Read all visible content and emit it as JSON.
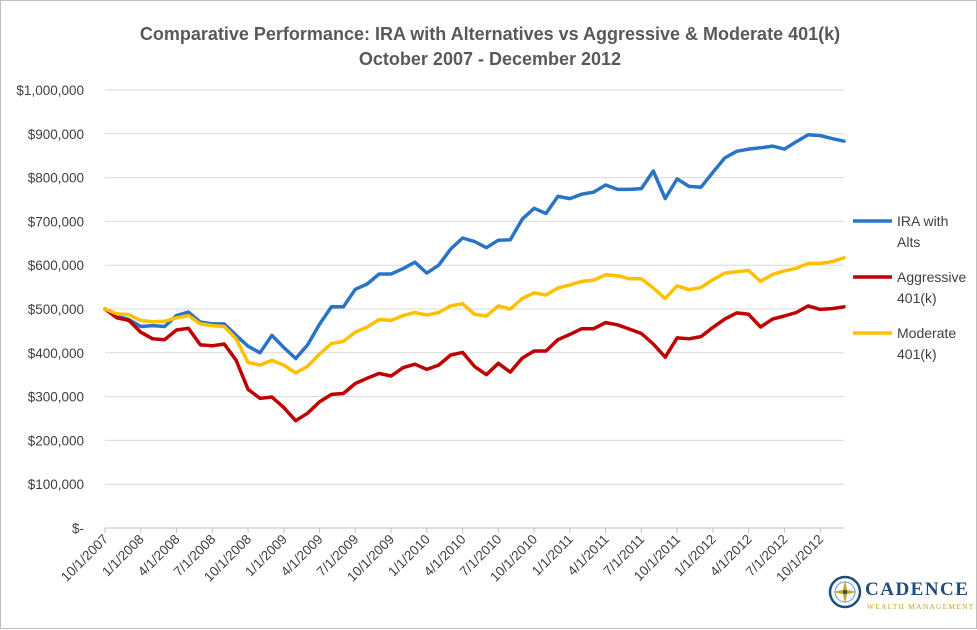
{
  "chart_data": {
    "type": "line",
    "title": "Comparative Performance: IRA with Alternatives vs Aggressive & Moderate 401(k)",
    "subtitle": "October 2007 - December 2012",
    "xlabel": "",
    "ylabel": "",
    "ylim": [
      0,
      1000000
    ],
    "y_ticks": [
      0,
      100000,
      200000,
      300000,
      400000,
      500000,
      600000,
      700000,
      800000,
      900000,
      1000000
    ],
    "y_tick_labels": [
      "$-",
      "$100,000",
      "$200,000",
      "$300,000",
      "$400,000",
      "$500,000",
      "$600,000",
      "$700,000",
      "$800,000",
      "$900,000",
      "$1,000,000"
    ],
    "x_tick_labels": [
      "10/1/2007",
      "1/1/2008",
      "4/1/2008",
      "7/1/2008",
      "10/1/2008",
      "1/1/2009",
      "4/1/2009",
      "7/1/2009",
      "10/1/2009",
      "1/1/2010",
      "4/1/2010",
      "7/1/2010",
      "10/1/2010",
      "1/1/2011",
      "4/1/2011",
      "7/1/2011",
      "10/1/2011",
      "1/1/2012",
      "4/1/2012",
      "7/1/2012",
      "10/1/2012"
    ],
    "x_tick_every": 3,
    "grid": true,
    "legend_position": "right",
    "series": [
      {
        "name": "IRA with Alts",
        "color": "#2a74c5",
        "values": [
          500000,
          484000,
          476000,
          460000,
          462000,
          460000,
          485000,
          493000,
          470000,
          466000,
          466000,
          440000,
          415000,
          400000,
          440000,
          412000,
          387000,
          418000,
          465000,
          505000,
          505000,
          545000,
          557000,
          580000,
          580000,
          592000,
          607000,
          582000,
          600000,
          637000,
          662000,
          654000,
          640000,
          657000,
          658000,
          705000,
          730000,
          718000,
          757000,
          752000,
          762000,
          767000,
          783000,
          773000,
          773000,
          775000,
          815000,
          752000,
          797000,
          780000,
          778000,
          812000,
          845000,
          860000,
          865000,
          868000,
          872000,
          865000,
          882000,
          898000,
          896000,
          889000,
          883000
        ]
      },
      {
        "name": "Aggressive 401(k)",
        "color": "#c00000",
        "values": [
          500000,
          480000,
          474000,
          447000,
          432000,
          430000,
          452000,
          456000,
          418000,
          416000,
          420000,
          383000,
          317000,
          296000,
          299000,
          275000,
          245000,
          262000,
          288000,
          305000,
          307000,
          330000,
          342000,
          353000,
          347000,
          366000,
          374000,
          362000,
          372000,
          395000,
          401000,
          369000,
          350000,
          376000,
          356000,
          388000,
          404000,
          404000,
          430000,
          442000,
          455000,
          455000,
          469000,
          464000,
          454000,
          444000,
          420000,
          390000,
          434000,
          432000,
          437000,
          458000,
          477000,
          491000,
          488000,
          459000,
          477000,
          484000,
          492000,
          507000,
          499000,
          501000,
          505000
        ]
      },
      {
        "name": "Moderate 401(k)",
        "color": "#ffc000",
        "values": [
          500000,
          489000,
          487000,
          474000,
          471000,
          472000,
          480000,
          485000,
          466000,
          462000,
          460000,
          432000,
          378000,
          372000,
          383000,
          372000,
          354000,
          369000,
          397000,
          421000,
          426000,
          447000,
          459000,
          476000,
          474000,
          485000,
          492000,
          486000,
          492000,
          507000,
          512000,
          488000,
          484000,
          507000,
          500000,
          524000,
          537000,
          532000,
          548000,
          555000,
          563000,
          566000,
          578000,
          576000,
          569000,
          569000,
          548000,
          524000,
          553000,
          544000,
          549000,
          567000,
          582000,
          585000,
          588000,
          563000,
          579000,
          587000,
          593000,
          604000,
          604000,
          608000,
          617000
        ]
      }
    ]
  },
  "logo": {
    "name": "CADENCE",
    "tagline": "WEALTH MANAGEMENT"
  }
}
